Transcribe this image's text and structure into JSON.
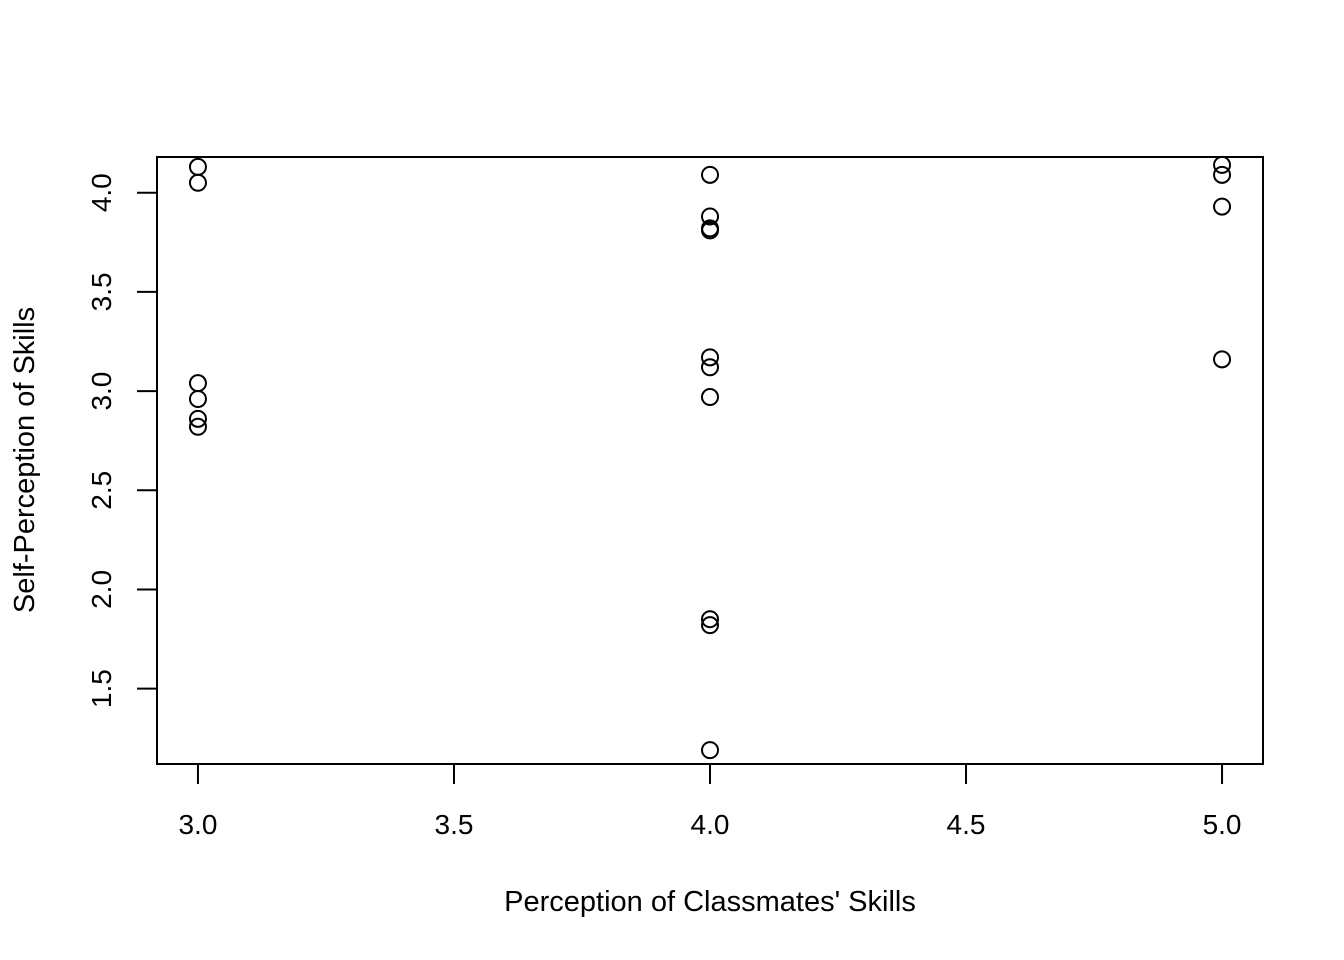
{
  "chart_data": {
    "type": "scatter",
    "title": "",
    "xlabel": "Perception of Classmates' Skills",
    "ylabel": "Self-Perception of Skills",
    "xlim": [
      2.92,
      5.08
    ],
    "ylim": [
      1.12,
      4.18
    ],
    "x_ticks": [
      3.0,
      3.5,
      4.0,
      4.5,
      5.0
    ],
    "x_tick_labels": [
      "3.0",
      "3.5",
      "4.0",
      "4.5",
      "5.0"
    ],
    "y_ticks": [
      1.5,
      2.0,
      2.5,
      3.0,
      3.5,
      4.0
    ],
    "y_tick_labels": [
      "1.5",
      "2.0",
      "2.5",
      "3.0",
      "3.5",
      "4.0"
    ],
    "grid": false,
    "legend": "none",
    "marker": "open-circle",
    "color": "#000000",
    "points": [
      {
        "x": 3.0,
        "y": 4.13
      },
      {
        "x": 3.0,
        "y": 4.05
      },
      {
        "x": 3.0,
        "y": 3.04
      },
      {
        "x": 3.0,
        "y": 2.96
      },
      {
        "x": 3.0,
        "y": 2.86
      },
      {
        "x": 3.0,
        "y": 2.82
      },
      {
        "x": 4.0,
        "y": 4.09
      },
      {
        "x": 4.0,
        "y": 3.88
      },
      {
        "x": 4.0,
        "y": 3.82
      },
      {
        "x": 4.0,
        "y": 3.81
      },
      {
        "x": 4.0,
        "y": 3.17
      },
      {
        "x": 4.0,
        "y": 3.12
      },
      {
        "x": 4.0,
        "y": 2.97
      },
      {
        "x": 4.0,
        "y": 1.85
      },
      {
        "x": 4.0,
        "y": 1.82
      },
      {
        "x": 4.0,
        "y": 1.19
      },
      {
        "x": 5.0,
        "y": 4.14
      },
      {
        "x": 5.0,
        "y": 4.09
      },
      {
        "x": 5.0,
        "y": 3.93
      },
      {
        "x": 5.0,
        "y": 3.16
      }
    ]
  }
}
